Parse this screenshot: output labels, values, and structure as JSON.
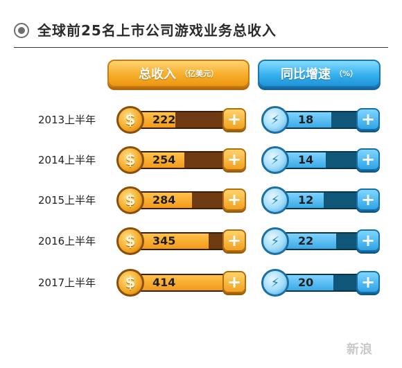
{
  "title": "全球前25名上市公司游戏业务总收入",
  "headers": {
    "revenue": {
      "label": "总收入",
      "unit": "（亿美元）"
    },
    "growth": {
      "label": "同比增速",
      "unit": "（%）"
    }
  },
  "icons": {
    "revenue_coin": "dollar-coin-icon",
    "growth_coin": "lightning-coin-icon",
    "plus": "plus-icon",
    "title_bullet": "radio-bullet-icon"
  },
  "colors": {
    "revenue_accent": "#f6ae2a",
    "growth_accent": "#36b2ef"
  },
  "chart_data": {
    "type": "bar",
    "categories": [
      "2013上半年",
      "2014上半年",
      "2015上半年",
      "2016上半年",
      "2017上半年"
    ],
    "series": [
      {
        "values": [
          222,
          254,
          284,
          345,
          414
        ]
      },
      {
        "values": [
          18,
          14,
          12,
          22,
          20
        ]
      }
    ]
  }
}
